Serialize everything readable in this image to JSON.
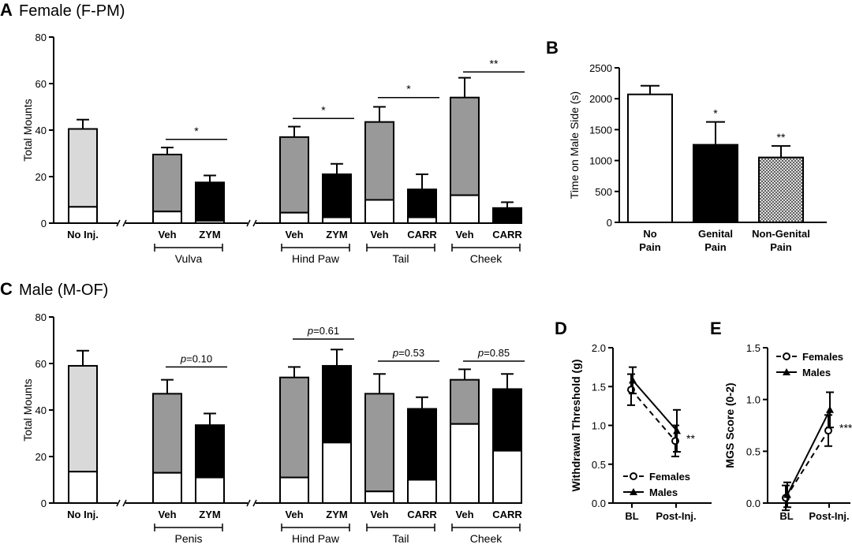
{
  "colors": {
    "light_gray": "#d9d9d9",
    "gray": "#999999",
    "black": "#000000",
    "white": "#ffffff"
  },
  "chart_data": [
    {
      "panel": "A",
      "title": "Female (F-PM)",
      "type": "bar",
      "stacked": true,
      "ylabel": "Total Mounts",
      "ylim": [
        0,
        80
      ],
      "yticks": [
        0,
        20,
        40,
        60,
        80
      ],
      "bars": [
        {
          "label": "No Inj.",
          "total": 40.5,
          "base": 7,
          "error": 4,
          "fill": "light_gray"
        },
        {
          "label": "Veh",
          "total": 29.5,
          "base": 5,
          "error": 3,
          "fill": "gray"
        },
        {
          "label": "ZYM",
          "total": 17.5,
          "base": 1,
          "error": 3,
          "fill": "black"
        },
        {
          "label": "Veh",
          "total": 37,
          "base": 4.5,
          "error": 4.5,
          "fill": "gray"
        },
        {
          "label": "ZYM",
          "total": 21,
          "base": 2.5,
          "error": 4.5,
          "fill": "black"
        },
        {
          "label": "Veh",
          "total": 43.5,
          "base": 10,
          "error": 6.5,
          "fill": "gray"
        },
        {
          "label": "CARR",
          "total": 14.5,
          "base": 2.5,
          "error": 6.5,
          "fill": "black"
        },
        {
          "label": "Veh",
          "total": 54,
          "base": 12,
          "error": 8.5,
          "fill": "gray"
        },
        {
          "label": "CARR",
          "total": 6.5,
          "base": 0,
          "error": 2.5,
          "fill": "black"
        }
      ],
      "groups": [
        {
          "label": "Vulva",
          "bars": [
            1,
            2
          ]
        },
        {
          "label": "Hind Paw",
          "bars": [
            3,
            4
          ]
        },
        {
          "label": "Tail",
          "bars": [
            5,
            6
          ]
        },
        {
          "label": "Cheek",
          "bars": [
            7,
            8
          ]
        }
      ],
      "comparisons": [
        {
          "bars": [
            1,
            2
          ],
          "text": "*",
          "italic_p": false,
          "y": 36
        },
        {
          "bars": [
            3,
            4
          ],
          "text": "*",
          "italic_p": false,
          "y": 45
        },
        {
          "bars": [
            5,
            6
          ],
          "text": "*",
          "italic_p": false,
          "y": 54
        },
        {
          "bars": [
            7,
            8
          ],
          "text": "**",
          "italic_p": false,
          "y": 65
        }
      ]
    },
    {
      "panel": "B",
      "title": "",
      "type": "bar",
      "ylabel": "Time on Male Side (s)",
      "ylim": [
        0,
        2500
      ],
      "yticks": [
        0,
        500,
        1000,
        1500,
        2000,
        2500
      ],
      "bars": [
        {
          "label": "No Pain",
          "value": 2070,
          "error": 140,
          "fill": "white",
          "sig": ""
        },
        {
          "label": "Genital Pain",
          "value": 1255,
          "error": 370,
          "fill": "black",
          "sig": "*"
        },
        {
          "label": "Non-Genital Pain",
          "value": 1050,
          "error": 185,
          "fill": "hatch",
          "sig": "**"
        }
      ]
    },
    {
      "panel": "C",
      "title": "Male (M-OF)",
      "type": "bar",
      "stacked": true,
      "ylabel": "Total Mounts",
      "ylim": [
        0,
        80
      ],
      "yticks": [
        0,
        20,
        40,
        60,
        80
      ],
      "bars": [
        {
          "label": "No Inj.",
          "total": 59,
          "base": 13.5,
          "error": 6.5,
          "fill": "light_gray"
        },
        {
          "label": "Veh",
          "total": 47,
          "base": 13,
          "error": 6,
          "fill": "gray"
        },
        {
          "label": "ZYM",
          "total": 33.5,
          "base": 11,
          "error": 5,
          "fill": "black"
        },
        {
          "label": "Veh",
          "total": 54,
          "base": 11,
          "error": 4.5,
          "fill": "gray"
        },
        {
          "label": "ZYM",
          "total": 59,
          "base": 26,
          "error": 7,
          "fill": "black"
        },
        {
          "label": "Veh",
          "total": 47,
          "base": 5,
          "error": 8.5,
          "fill": "gray"
        },
        {
          "label": "CARR",
          "total": 40.5,
          "base": 10,
          "error": 5,
          "fill": "black"
        },
        {
          "label": "Veh",
          "total": 53,
          "base": 34,
          "error": 4.5,
          "fill": "gray"
        },
        {
          "label": "CARR",
          "total": 49,
          "base": 22.5,
          "error": 6.5,
          "fill": "black"
        }
      ],
      "groups": [
        {
          "label": "Penis",
          "bars": [
            1,
            2
          ]
        },
        {
          "label": "Hind Paw",
          "bars": [
            3,
            4
          ]
        },
        {
          "label": "Tail",
          "bars": [
            5,
            6
          ]
        },
        {
          "label": "Cheek",
          "bars": [
            7,
            8
          ]
        }
      ],
      "comparisons": [
        {
          "bars": [
            1,
            2
          ],
          "p": "p",
          "text": "=0.10",
          "y": 58.5
        },
        {
          "bars": [
            3,
            4
          ],
          "p": "p",
          "text": "=0.61",
          "y": 70.5
        },
        {
          "bars": [
            5,
            6
          ],
          "p": "p",
          "text": "=0.53",
          "y": 61
        },
        {
          "bars": [
            7,
            8
          ],
          "p": "p",
          "text": "=0.85",
          "y": 61
        }
      ]
    },
    {
      "panel": "D",
      "title": "",
      "type": "line",
      "ylabel": "Withdrawal Threshold (g)",
      "ylim": [
        0,
        2
      ],
      "yticks": [
        "0.0",
        "0.5",
        "1.0",
        "1.5",
        "2.0"
      ],
      "categories": [
        "BL",
        "Post-Inj."
      ],
      "series": [
        {
          "name": "Females",
          "values": [
            1.46,
            0.8
          ],
          "errors": [
            0.2,
            0.2
          ],
          "style": "dashed",
          "marker": "circle"
        },
        {
          "name": "Males",
          "values": [
            1.58,
            0.93
          ],
          "errors": [
            0.17,
            0.27
          ],
          "style": "solid",
          "marker": "triangle"
        }
      ],
      "annotation": "**"
    },
    {
      "panel": "E",
      "title": "",
      "type": "line",
      "ylabel": "MGS Score (0-2)",
      "ylim": [
        0,
        1.5
      ],
      "yticks": [
        "0.0",
        "0.5",
        "1.0",
        "1.5"
      ],
      "categories": [
        "BL",
        "Post-Inj."
      ],
      "series": [
        {
          "name": "Females",
          "values": [
            0.05,
            0.7
          ],
          "errors": [
            0.12,
            0.15
          ],
          "style": "dashed",
          "marker": "circle"
        },
        {
          "name": "Males",
          "values": [
            0.08,
            0.9
          ],
          "errors": [
            0.12,
            0.17
          ],
          "style": "solid",
          "marker": "triangle"
        }
      ],
      "annotation": "***"
    }
  ]
}
